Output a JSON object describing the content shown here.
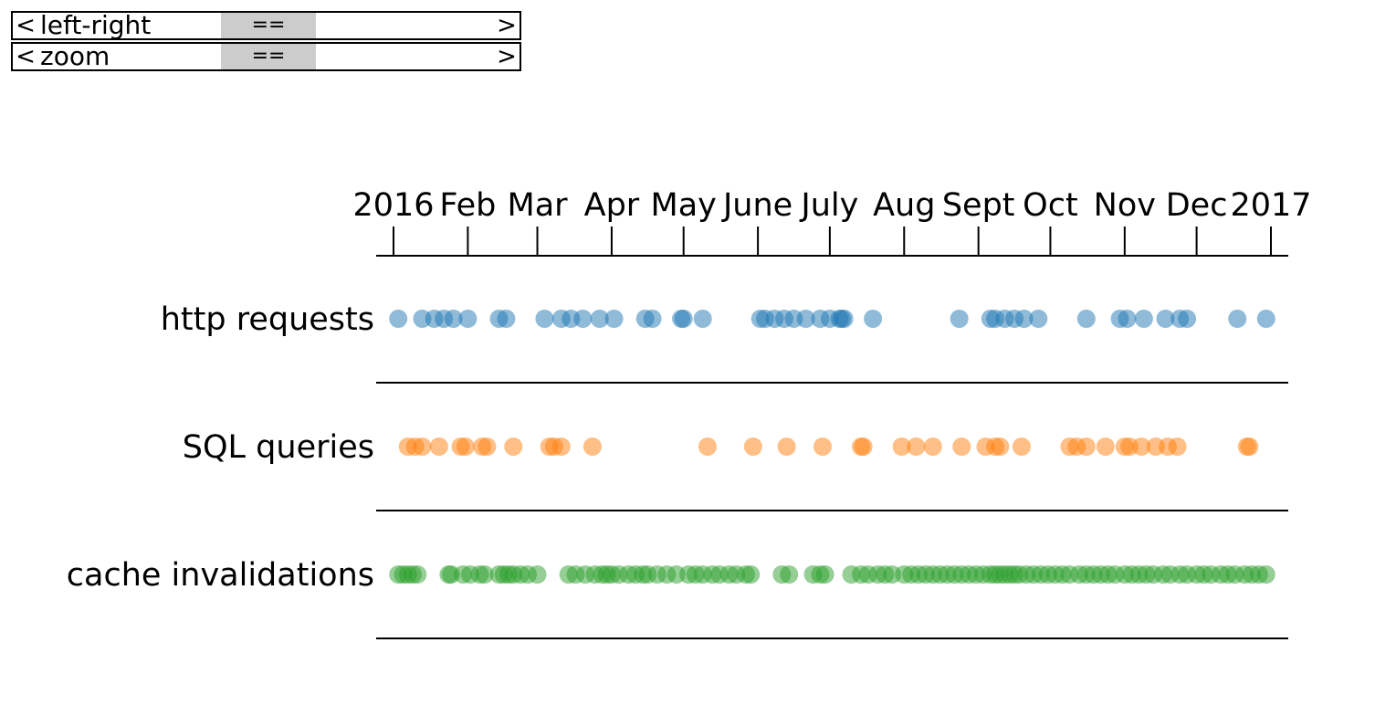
{
  "controls": {
    "pan": {
      "left_arrow": "<",
      "right_arrow": ">",
      "label": "left-right",
      "thumb": "=="
    },
    "zoom": {
      "left_arrow": "<",
      "right_arrow": ">",
      "label": "zoom",
      "thumb": "=="
    }
  },
  "chart_data": {
    "type": "scatter",
    "x_axis": {
      "range": [
        "2016-01-01",
        "2017-01-01"
      ],
      "ticks": [
        {
          "date": "2016-01-01",
          "label": "2016"
        },
        {
          "date": "2016-02-01",
          "label": "Feb"
        },
        {
          "date": "2016-03-01",
          "label": "Mar"
        },
        {
          "date": "2016-04-01",
          "label": "Apr"
        },
        {
          "date": "2016-05-01",
          "label": "May"
        },
        {
          "date": "2016-06-01",
          "label": "June"
        },
        {
          "date": "2016-07-01",
          "label": "July"
        },
        {
          "date": "2016-08-01",
          "label": "Aug"
        },
        {
          "date": "2016-09-01",
          "label": "Sept"
        },
        {
          "date": "2016-10-01",
          "label": "Oct"
        },
        {
          "date": "2016-11-01",
          "label": "Nov"
        },
        {
          "date": "2016-12-01",
          "label": "Dec"
        },
        {
          "date": "2017-01-01",
          "label": "2017"
        }
      ]
    },
    "series": [
      {
        "name": "http requests",
        "color": "#1f77b4",
        "dates": [
          "2016-01-03",
          "2016-01-13",
          "2016-01-18",
          "2016-01-22",
          "2016-01-26",
          "2016-02-01",
          "2016-02-14",
          "2016-02-17",
          "2016-03-04",
          "2016-03-11",
          "2016-03-15",
          "2016-03-20",
          "2016-03-27",
          "2016-04-02",
          "2016-04-15",
          "2016-04-18",
          "2016-04-30",
          "2016-05-01",
          "2016-05-09",
          "2016-06-02",
          "2016-06-04",
          "2016-06-08",
          "2016-06-12",
          "2016-06-16",
          "2016-06-21",
          "2016-06-27",
          "2016-07-01",
          "2016-07-05",
          "2016-07-06",
          "2016-07-07",
          "2016-07-19",
          "2016-08-24",
          "2016-09-06",
          "2016-09-08",
          "2016-09-12",
          "2016-09-16",
          "2016-09-20",
          "2016-09-26",
          "2016-10-16",
          "2016-10-30",
          "2016-11-02",
          "2016-11-09",
          "2016-11-18",
          "2016-11-24",
          "2016-11-27",
          "2016-12-18",
          "2016-12-30"
        ]
      },
      {
        "name": "SQL queries",
        "color": "#ff7f0e",
        "dates": [
          "2016-01-07",
          "2016-01-10",
          "2016-01-13",
          "2016-01-20",
          "2016-01-29",
          "2016-01-31",
          "2016-02-07",
          "2016-02-09",
          "2016-02-20",
          "2016-03-06",
          "2016-03-08",
          "2016-03-11",
          "2016-03-24",
          "2016-05-11",
          "2016-05-30",
          "2016-06-13",
          "2016-06-28",
          "2016-07-14",
          "2016-07-15",
          "2016-07-31",
          "2016-08-06",
          "2016-08-13",
          "2016-08-25",
          "2016-09-04",
          "2016-09-08",
          "2016-09-10",
          "2016-09-19",
          "2016-10-09",
          "2016-10-12",
          "2016-10-16",
          "2016-10-24",
          "2016-11-01",
          "2016-11-03",
          "2016-11-08",
          "2016-11-14",
          "2016-11-19",
          "2016-11-23",
          "2016-12-22",
          "2016-12-23"
        ]
      },
      {
        "name": "cache invalidations",
        "color": "#2ca02c",
        "dates": [
          "2016-01-03",
          "2016-01-05",
          "2016-01-07",
          "2016-01-09",
          "2016-01-11",
          "2016-01-24",
          "2016-01-25",
          "2016-01-30",
          "2016-02-02",
          "2016-02-06",
          "2016-02-08",
          "2016-02-14",
          "2016-02-16",
          "2016-02-18",
          "2016-02-20",
          "2016-02-23",
          "2016-02-26",
          "2016-03-01",
          "2016-03-14",
          "2016-03-17",
          "2016-03-21",
          "2016-03-25",
          "2016-03-28",
          "2016-03-30",
          "2016-04-01",
          "2016-04-04",
          "2016-04-08",
          "2016-04-11",
          "2016-04-14",
          "2016-04-16",
          "2016-04-20",
          "2016-04-24",
          "2016-04-28",
          "2016-05-03",
          "2016-05-06",
          "2016-05-09",
          "2016-05-13",
          "2016-05-16",
          "2016-05-20",
          "2016-05-23",
          "2016-05-27",
          "2016-05-29",
          "2016-06-11",
          "2016-06-14",
          "2016-06-24",
          "2016-06-27",
          "2016-06-29",
          "2016-07-10",
          "2016-07-14",
          "2016-07-17",
          "2016-07-21",
          "2016-07-24",
          "2016-07-27",
          "2016-08-01",
          "2016-08-04",
          "2016-08-07",
          "2016-08-10",
          "2016-08-13",
          "2016-08-16",
          "2016-08-19",
          "2016-08-22",
          "2016-08-25",
          "2016-08-28",
          "2016-08-31",
          "2016-09-03",
          "2016-09-06",
          "2016-09-08",
          "2016-09-10",
          "2016-09-12",
          "2016-09-14",
          "2016-09-16",
          "2016-09-18",
          "2016-09-21",
          "2016-09-24",
          "2016-09-27",
          "2016-09-30",
          "2016-10-03",
          "2016-10-06",
          "2016-10-09",
          "2016-10-13",
          "2016-10-16",
          "2016-10-19",
          "2016-10-22",
          "2016-10-25",
          "2016-10-28",
          "2016-11-01",
          "2016-11-04",
          "2016-11-07",
          "2016-11-10",
          "2016-11-13",
          "2016-11-17",
          "2016-11-20",
          "2016-11-24",
          "2016-11-27",
          "2016-12-01",
          "2016-12-04",
          "2016-12-07",
          "2016-12-11",
          "2016-12-14",
          "2016-12-17",
          "2016-12-21",
          "2016-12-24",
          "2016-12-27",
          "2016-12-30"
        ]
      }
    ]
  }
}
